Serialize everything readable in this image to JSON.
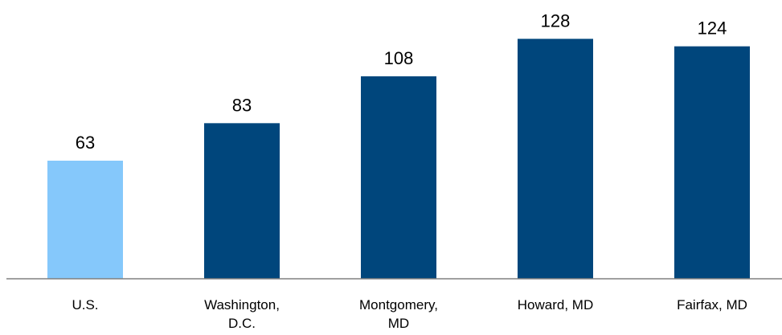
{
  "chart_data": {
    "type": "bar",
    "title": "",
    "xlabel": "",
    "ylabel": "",
    "categories": [
      [
        "U.S."
      ],
      [
        "Washington,",
        "D.C."
      ],
      [
        "Montgomery,",
        "MD"
      ],
      [
        "Howard, MD"
      ],
      [
        "Fairfax, MD"
      ]
    ],
    "values": [
      63,
      83,
      108,
      128,
      124
    ],
    "data_labels": [
      "63",
      "83",
      "108",
      "128",
      "124"
    ],
    "bar_colors": [
      "#85c8fb",
      "#00467c",
      "#00467c",
      "#00467c",
      "#00467c"
    ],
    "axis_color": "#808080",
    "ylim": [
      0,
      135
    ],
    "grid": false,
    "legend": "none"
  }
}
